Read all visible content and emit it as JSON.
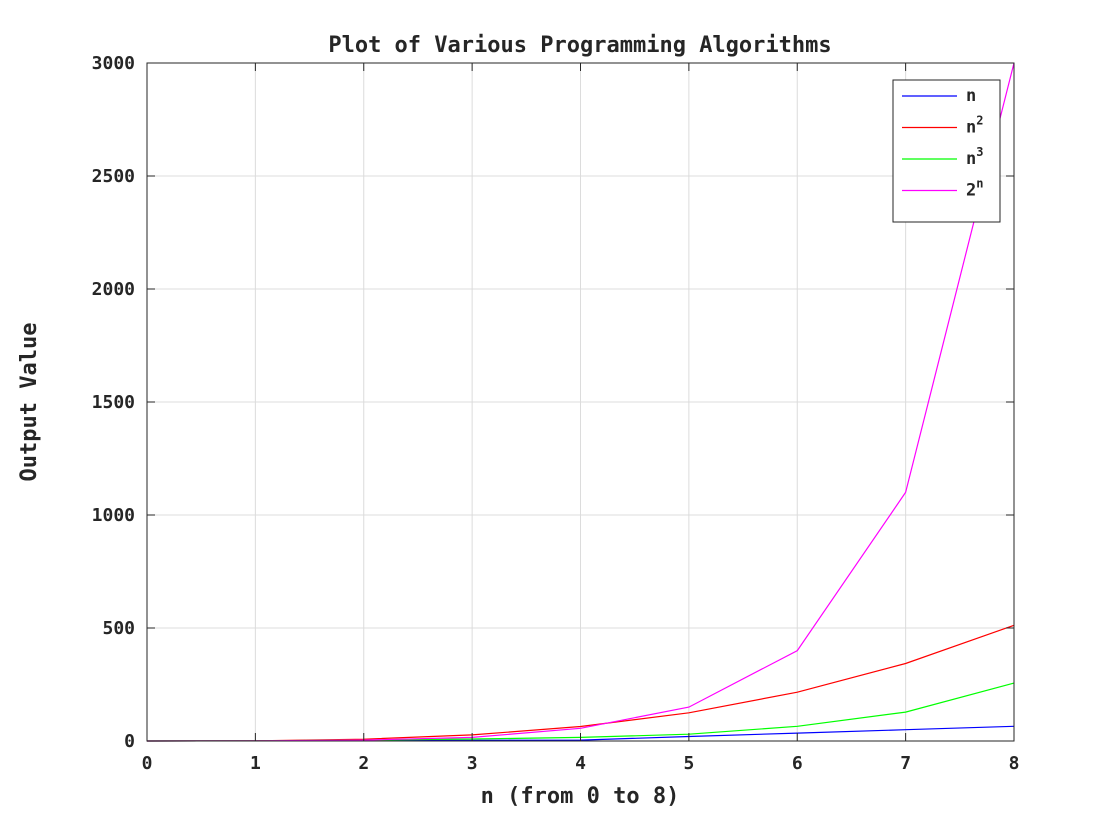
{
  "chart_data": {
    "type": "line",
    "title": "Plot of Various Programming Algorithms",
    "xlabel": "n (from 0 to 8)",
    "ylabel": "Output Value",
    "x": [
      0,
      1,
      2,
      3,
      4,
      5,
      6,
      7,
      8
    ],
    "xlim": [
      0,
      8
    ],
    "ylim": [
      0,
      3000
    ],
    "xticks": [
      "0",
      "1",
      "2",
      "3",
      "4",
      "5",
      "6",
      "7",
      "8"
    ],
    "yticks": [
      "0",
      "500",
      "1000",
      "1500",
      "2000",
      "2500",
      "3000"
    ],
    "grid": true,
    "legend_position": "top-right",
    "series": [
      {
        "name": "n",
        "base": "n",
        "sup": "",
        "color": "#0000ff",
        "values": [
          0,
          1,
          2,
          3,
          4,
          20,
          35,
          50,
          65
        ]
      },
      {
        "name": "n^2",
        "base": "n",
        "sup": "2",
        "color": "#ff0000",
        "values": [
          0,
          1,
          8,
          27,
          64,
          125,
          216,
          343,
          512
        ]
      },
      {
        "name": "n^3",
        "base": "n",
        "sup": "3",
        "color": "#00ff00",
        "values": [
          0,
          1,
          4,
          9,
          16,
          30,
          65,
          128,
          256
        ]
      },
      {
        "name": "2^n",
        "base": "2",
        "sup": "n",
        "color": "#ff00ff",
        "values": [
          0,
          1,
          4,
          16,
          56,
          150,
          400,
          1100,
          3000
        ]
      }
    ]
  }
}
